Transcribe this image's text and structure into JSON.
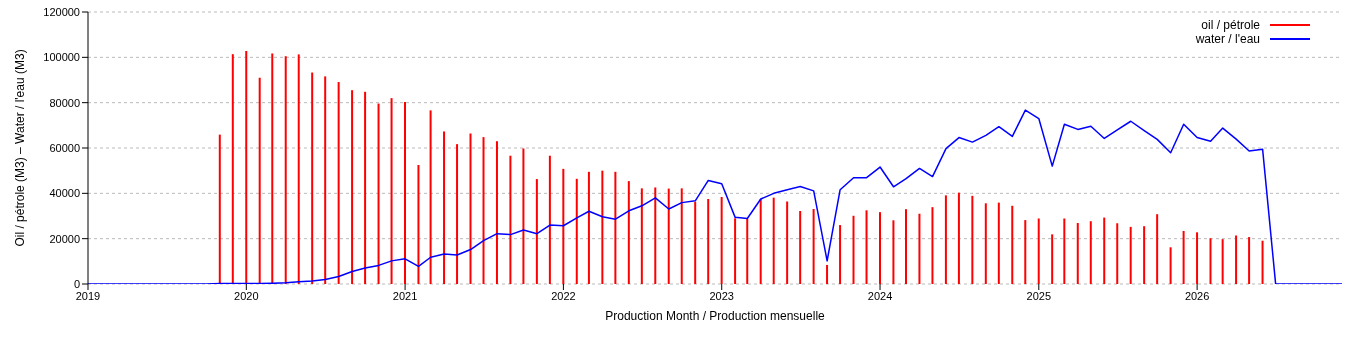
{
  "chart_data": {
    "type": "bar",
    "xlabel": "Production Month / Production mensuelle",
    "ylabel": "Oil / pétrole (M3)  –  Water / l'eau (M3)",
    "xlim": [
      "2019-01",
      "2026-12"
    ],
    "xticks": [
      {
        "value": "2019",
        "label": "2019"
      },
      {
        "value": "2020",
        "label": "2020"
      },
      {
        "value": "2021",
        "label": "2021"
      },
      {
        "value": "2022",
        "label": "2022"
      },
      {
        "value": "2023",
        "label": "2023"
      },
      {
        "value": "2024",
        "label": "2024"
      },
      {
        "value": "2025",
        "label": "2025"
      },
      {
        "value": "2026",
        "label": "2026"
      }
    ],
    "ylim": [
      0,
      120000
    ],
    "yticks": [
      0,
      20000,
      40000,
      60000,
      80000,
      100000,
      120000
    ],
    "grid": "y",
    "legend": "top right",
    "series": [
      {
        "name": "oil / pétrole",
        "color": "#ff0000",
        "x": [
          "2019-11",
          "2019-12",
          "2020-01",
          "2020-02",
          "2020-03",
          "2020-04",
          "2020-05",
          "2020-06",
          "2020-07",
          "2020-08",
          "2020-09",
          "2020-10",
          "2020-11",
          "2020-12",
          "2021-01",
          "2021-02",
          "2021-03",
          "2021-04",
          "2021-05",
          "2021-06",
          "2021-07",
          "2021-08",
          "2021-09",
          "2021-10",
          "2021-11",
          "2021-12",
          "2022-01",
          "2022-02",
          "2022-03",
          "2022-04",
          "2022-05",
          "2022-06",
          "2022-07",
          "2022-08",
          "2022-09",
          "2022-10",
          "2022-11",
          "2022-12",
          "2023-01",
          "2023-02",
          "2023-03",
          "2023-04",
          "2023-05",
          "2023-06",
          "2023-07",
          "2023-08",
          "2023-09",
          "2023-10",
          "2023-11",
          "2023-12",
          "2024-01",
          "2024-02",
          "2024-03",
          "2024-04",
          "2024-05",
          "2024-06",
          "2024-07",
          "2024-08",
          "2024-09",
          "2024-10",
          "2024-11",
          "2024-12",
          "2025-01",
          "2025-02",
          "2025-03",
          "2025-04",
          "2025-05",
          "2025-06",
          "2025-07",
          "2025-08",
          "2025-09",
          "2025-10",
          "2025-11",
          "2025-12",
          "2026-01",
          "2026-02",
          "2026-03",
          "2026-04",
          "2026-05",
          "2026-06"
        ],
        "values": [
          65900,
          101400,
          102800,
          91000,
          101700,
          100500,
          101300,
          93300,
          91600,
          89100,
          85500,
          84800,
          79600,
          82000,
          80300,
          52500,
          76600,
          67300,
          61700,
          66400,
          64800,
          63000,
          56600,
          59800,
          46300,
          56600,
          50800,
          46400,
          49500,
          50000,
          49500,
          45400,
          42200,
          42600,
          42100,
          42200,
          36300,
          37500,
          38400,
          29000,
          28800,
          37500,
          38100,
          36400,
          32200,
          33100,
          8400,
          26000,
          30100,
          32500,
          31700,
          28100,
          33000,
          31000,
          33900,
          39100,
          40300,
          38900,
          35600,
          35900,
          34500,
          28200,
          28900,
          21900,
          28900,
          26900,
          27700,
          29300,
          26800,
          25200,
          25500,
          30800,
          16200,
          23400,
          22800,
          20200,
          19800,
          21400,
          20700,
          19100
        ]
      },
      {
        "name": "water / l'eau",
        "type": "line",
        "color": "#0000ff",
        "x": [
          "2019-01",
          "2019-02",
          "2019-03",
          "2019-04",
          "2019-05",
          "2019-06",
          "2019-07",
          "2019-08",
          "2019-09",
          "2019-10",
          "2019-11",
          "2019-12",
          "2020-01",
          "2020-02",
          "2020-03",
          "2020-04",
          "2020-05",
          "2020-06",
          "2020-07",
          "2020-08",
          "2020-09",
          "2020-10",
          "2020-11",
          "2020-12",
          "2021-01",
          "2021-02",
          "2021-03",
          "2021-04",
          "2021-05",
          "2021-06",
          "2021-07",
          "2021-08",
          "2021-09",
          "2021-10",
          "2021-11",
          "2021-12",
          "2022-01",
          "2022-02",
          "2022-03",
          "2022-04",
          "2022-05",
          "2022-06",
          "2022-07",
          "2022-08",
          "2022-09",
          "2022-10",
          "2022-11",
          "2022-12",
          "2023-01",
          "2023-02",
          "2023-03",
          "2023-04",
          "2023-05",
          "2023-06",
          "2023-07",
          "2023-08",
          "2023-09",
          "2023-10",
          "2023-11",
          "2023-12",
          "2024-01",
          "2024-02",
          "2024-03",
          "2024-04",
          "2024-05",
          "2024-06",
          "2024-07",
          "2024-08",
          "2024-09",
          "2024-10",
          "2024-11",
          "2024-12",
          "2025-01",
          "2025-02",
          "2025-03",
          "2025-04",
          "2025-05",
          "2025-06",
          "2025-07",
          "2025-08",
          "2025-09",
          "2025-10",
          "2025-11",
          "2025-12",
          "2026-01",
          "2026-02",
          "2026-03",
          "2026-04",
          "2026-05",
          "2026-06",
          "2026-07",
          "2026-08",
          "2026-09",
          "2026-10",
          "2026-11",
          "2026-12"
        ],
        "values": [
          0,
          0,
          0,
          0,
          0,
          0,
          0,
          0,
          0,
          0,
          200,
          200,
          200,
          200,
          300,
          500,
          1000,
          1300,
          2000,
          3300,
          5500,
          7100,
          8200,
          10200,
          11100,
          7800,
          11800,
          13200,
          12800,
          15200,
          19100,
          22200,
          21800,
          23800,
          22200,
          26000,
          25700,
          29200,
          32100,
          29700,
          28600,
          32300,
          34500,
          38000,
          33100,
          35900,
          36700,
          45700,
          44200,
          29400,
          28900,
          37500,
          40000,
          41600,
          43000,
          41100,
          10200,
          41600,
          46900,
          46900,
          51600,
          42900,
          46500,
          51000,
          47400,
          59700,
          64600,
          62600,
          65600,
          69400,
          65100,
          76700,
          73000,
          52000,
          70500,
          68200,
          69600,
          64200,
          68000,
          71800,
          67700,
          63800,
          57900,
          70500,
          64600,
          63000,
          68800,
          63900,
          58700,
          59400,
          0,
          0,
          0,
          0,
          0,
          0
        ]
      }
    ]
  }
}
